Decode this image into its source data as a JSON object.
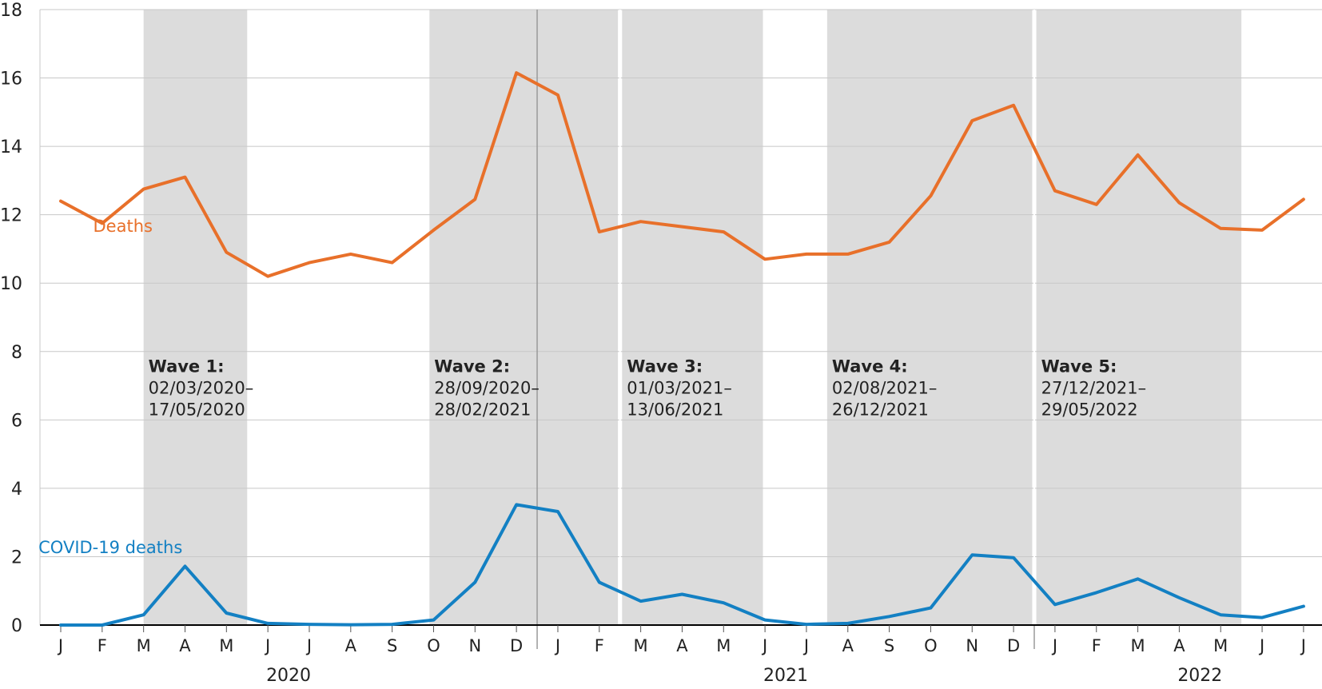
{
  "chart_data": {
    "type": "line",
    "ylim": [
      0,
      18
    ],
    "y_ticks": [
      "0",
      "2",
      "4",
      "6",
      "8",
      "10",
      "12",
      "14",
      "16",
      "18"
    ],
    "grid": true,
    "x": [
      "J",
      "F",
      "M",
      "A",
      "M",
      "J",
      "J",
      "A",
      "S",
      "O",
      "N",
      "D",
      "J",
      "F",
      "M",
      "A",
      "M",
      "J",
      "J",
      "A",
      "S",
      "O",
      "N",
      "D",
      "J",
      "F",
      "M",
      "A",
      "M",
      "J",
      "J"
    ],
    "years": [
      {
        "label": "2020",
        "center_index": 5.5
      },
      {
        "label": "2021",
        "center_index": 17.5
      },
      {
        "label": "2022",
        "center_index": 27.5
      }
    ],
    "year_boundaries": [
      11.5,
      23.5
    ],
    "series": [
      {
        "name": "Deaths",
        "color": "#e8702a",
        "label_index": 1.5,
        "label_value": 11.5,
        "values": [
          12.4,
          11.75,
          12.75,
          13.1,
          10.9,
          10.2,
          10.6,
          10.85,
          10.6,
          11.55,
          12.45,
          16.15,
          15.5,
          11.5,
          11.8,
          11.65,
          11.5,
          10.7,
          10.85,
          10.85,
          11.2,
          12.55,
          14.75,
          15.2,
          12.7,
          12.3,
          13.75,
          12.35,
          11.6,
          11.55,
          12.45
        ]
      },
      {
        "name": "COVID-19 deaths",
        "color": "#1380c3",
        "label_index": 1.2,
        "label_value": 2.1,
        "values": [
          0,
          0,
          0.3,
          1.72,
          0.35,
          0.05,
          0.02,
          0.01,
          0.02,
          0.15,
          1.25,
          3.52,
          3.32,
          1.25,
          0.7,
          0.9,
          0.65,
          0.15,
          0.02,
          0.05,
          0.25,
          0.5,
          2.05,
          1.97,
          0.6,
          0.95,
          1.35,
          0.8,
          0.3,
          0.22,
          0.55
        ]
      }
    ],
    "waves": [
      {
        "title": "Wave 1:",
        "start_date": "02/03/2020–",
        "end_date": "17/05/2020",
        "start_index": 2,
        "end_index": 4.5
      },
      {
        "title": "Wave 2:",
        "start_date": "28/09/2020–",
        "end_date": "28/02/2021",
        "start_index": 8.9,
        "end_index": 13.45
      },
      {
        "title": "Wave 3:",
        "start_date": "01/03/2021–",
        "end_date": "13/06/2021",
        "start_index": 13.55,
        "end_index": 16.95
      },
      {
        "title": "Wave 4:",
        "start_date": "02/08/2021–",
        "end_date": "26/12/2021",
        "start_index": 18.5,
        "end_index": 23.45
      },
      {
        "title": "Wave 5:",
        "start_date": "27/12/2021–",
        "end_date": "29/05/2022",
        "start_index": 23.55,
        "end_index": 28.5
      }
    ]
  }
}
